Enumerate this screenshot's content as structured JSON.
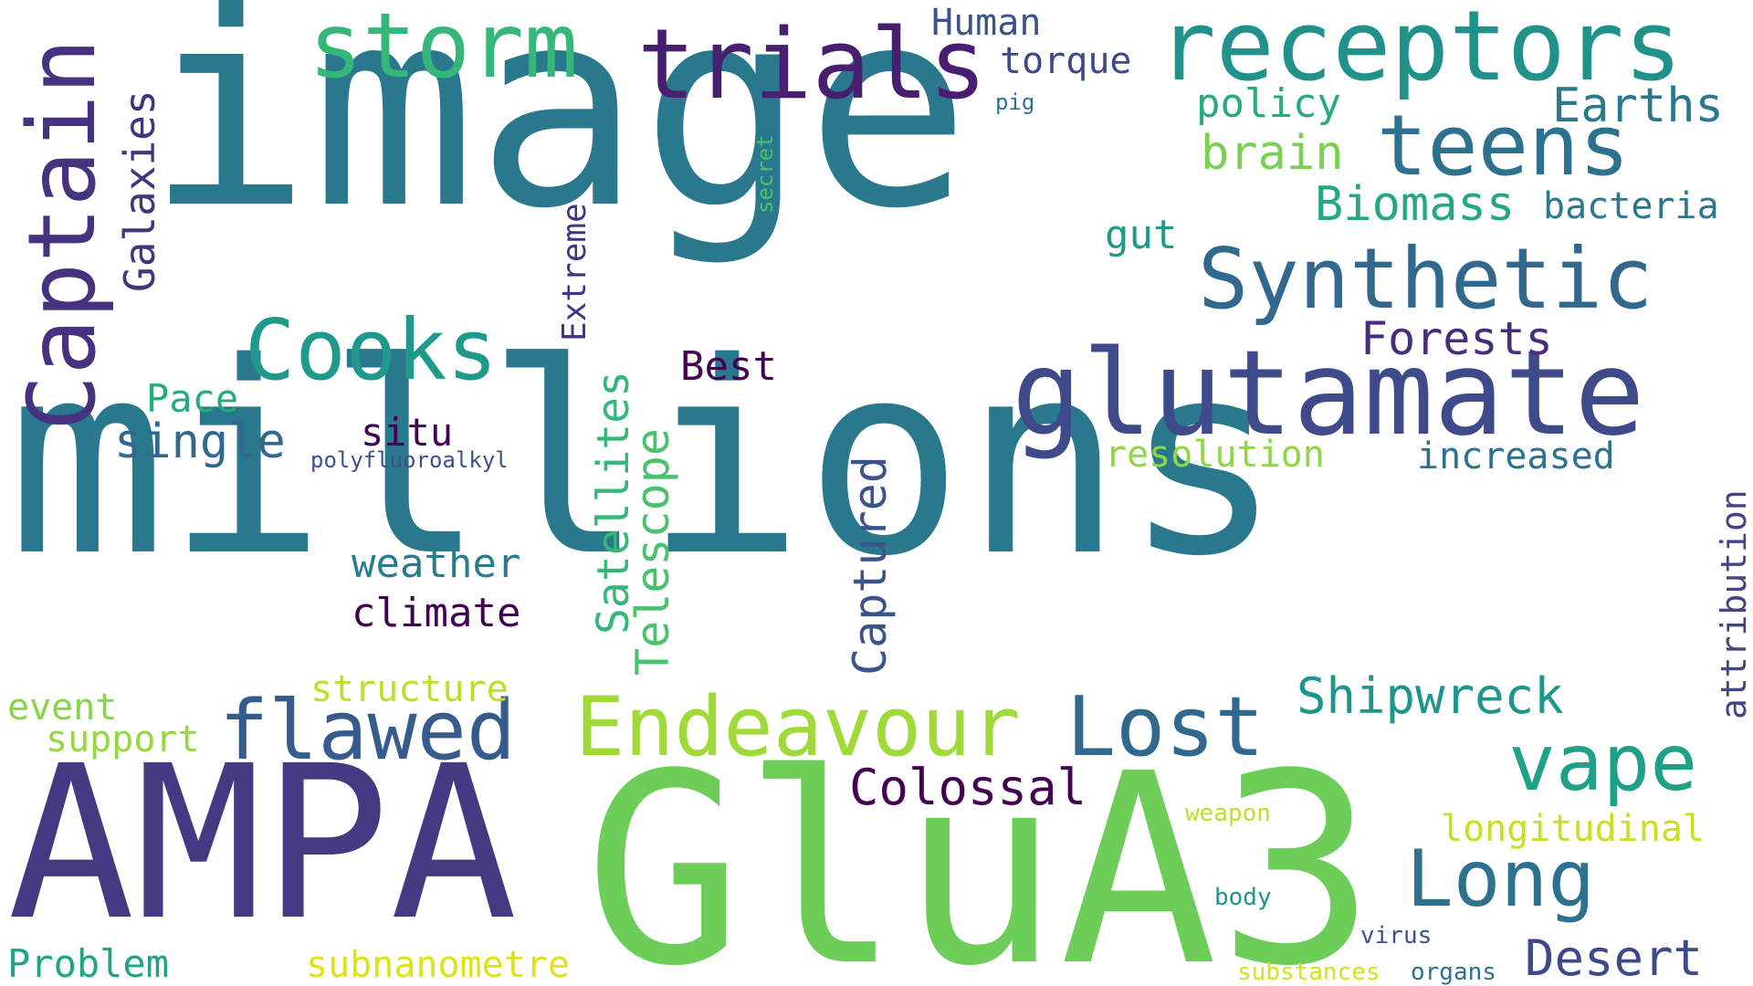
{
  "words": [
    {
      "text": "image",
      "color": "#2A788E",
      "orientation": "horizontal"
    },
    {
      "text": "millions",
      "color": "#2A788E",
      "orientation": "horizontal"
    },
    {
      "text": "GluA3",
      "color": "#6CCE59",
      "orientation": "horizontal"
    },
    {
      "text": "AMPA",
      "color": "#443983",
      "orientation": "horizontal"
    },
    {
      "text": "glutamate",
      "color": "#3F4A8A",
      "orientation": "horizontal"
    },
    {
      "text": "receptors",
      "color": "#21918C",
      "orientation": "horizontal"
    },
    {
      "text": "trials",
      "color": "#481F70",
      "orientation": "horizontal"
    },
    {
      "text": "storm",
      "color": "#35B779",
      "orientation": "horizontal"
    },
    {
      "text": "Captain",
      "color": "#46327E",
      "orientation": "vertical"
    },
    {
      "text": "Synthetic",
      "color": "#31688E",
      "orientation": "horizontal"
    },
    {
      "text": "teens",
      "color": "#2C728E",
      "orientation": "horizontal"
    },
    {
      "text": "Cooks",
      "color": "#1F9A8A",
      "orientation": "horizontal"
    },
    {
      "text": "Endeavour",
      "color": "#A0DA39",
      "orientation": "horizontal"
    },
    {
      "text": "flawed",
      "color": "#365C8D",
      "orientation": "horizontal"
    },
    {
      "text": "Lost",
      "color": "#31688E",
      "orientation": "horizontal"
    },
    {
      "text": "vape",
      "color": "#1FA187",
      "orientation": "horizontal"
    },
    {
      "text": "Long",
      "color": "#2C728E",
      "orientation": "horizontal"
    },
    {
      "text": "Galaxies",
      "color": "#46337E",
      "orientation": "vertical"
    },
    {
      "text": "Human",
      "color": "#3B528B",
      "orientation": "horizontal"
    },
    {
      "text": "torque",
      "color": "#3E4989",
      "orientation": "horizontal"
    },
    {
      "text": "pig",
      "color": "#2C728E",
      "orientation": "horizontal"
    },
    {
      "text": "policy",
      "color": "#25AB82",
      "orientation": "horizontal"
    },
    {
      "text": "Earths",
      "color": "#2A788E",
      "orientation": "horizontal"
    },
    {
      "text": "brain",
      "color": "#7AD151",
      "orientation": "horizontal"
    },
    {
      "text": "Biomass",
      "color": "#22A884",
      "orientation": "horizontal"
    },
    {
      "text": "bacteria",
      "color": "#2A788E",
      "orientation": "horizontal"
    },
    {
      "text": "secret",
      "color": "#4AC16D",
      "orientation": "vertical"
    },
    {
      "text": "Extreme",
      "color": "#46327E",
      "orientation": "vertical"
    },
    {
      "text": "gut",
      "color": "#1F9A8A",
      "orientation": "horizontal"
    },
    {
      "text": "Forests",
      "color": "#472D7B",
      "orientation": "horizontal"
    },
    {
      "text": "Best",
      "color": "#440154",
      "orientation": "horizontal"
    },
    {
      "text": "Pace",
      "color": "#25AB82",
      "orientation": "horizontal"
    },
    {
      "text": "single",
      "color": "#31688E",
      "orientation": "horizontal"
    },
    {
      "text": "situ",
      "color": "#440154",
      "orientation": "horizontal"
    },
    {
      "text": "polyfluoroalkyl",
      "color": "#3B528B",
      "orientation": "horizontal"
    },
    {
      "text": "Satellites",
      "color": "#35B779",
      "orientation": "vertical"
    },
    {
      "text": "Telescope",
      "color": "#4AC16D",
      "orientation": "vertical"
    },
    {
      "text": "Captured",
      "color": "#3B528B",
      "orientation": "vertical"
    },
    {
      "text": "resolution",
      "color": "#8FD744",
      "orientation": "horizontal"
    },
    {
      "text": "increased",
      "color": "#2C728E",
      "orientation": "horizontal"
    },
    {
      "text": "attribution",
      "color": "#414487",
      "orientation": "vertical"
    },
    {
      "text": "weather",
      "color": "#287C8E",
      "orientation": "horizontal"
    },
    {
      "text": "climate",
      "color": "#440154",
      "orientation": "horizontal"
    },
    {
      "text": "structure",
      "color": "#BDDF26",
      "orientation": "horizontal"
    },
    {
      "text": "event",
      "color": "#86D549",
      "orientation": "horizontal"
    },
    {
      "text": "support",
      "color": "#95D840",
      "orientation": "horizontal"
    },
    {
      "text": "Shipwreck",
      "color": "#1F968B",
      "orientation": "horizontal"
    },
    {
      "text": "Colossal",
      "color": "#440154",
      "orientation": "horizontal"
    },
    {
      "text": "longitudinal",
      "color": "#C8E020",
      "orientation": "horizontal"
    },
    {
      "text": "weapon",
      "color": "#BDDF26",
      "orientation": "horizontal"
    },
    {
      "text": "body",
      "color": "#21918C",
      "orientation": "horizontal"
    },
    {
      "text": "virus",
      "color": "#3B528B",
      "orientation": "horizontal"
    },
    {
      "text": "Problem",
      "color": "#20A386",
      "orientation": "horizontal"
    },
    {
      "text": "subnanometre",
      "color": "#DDE318",
      "orientation": "horizontal"
    },
    {
      "text": "substances",
      "color": "#D2E21B",
      "orientation": "horizontal"
    },
    {
      "text": "organs",
      "color": "#2D708E",
      "orientation": "horizontal"
    },
    {
      "text": "Desert",
      "color": "#3E4989",
      "orientation": "horizontal"
    }
  ]
}
